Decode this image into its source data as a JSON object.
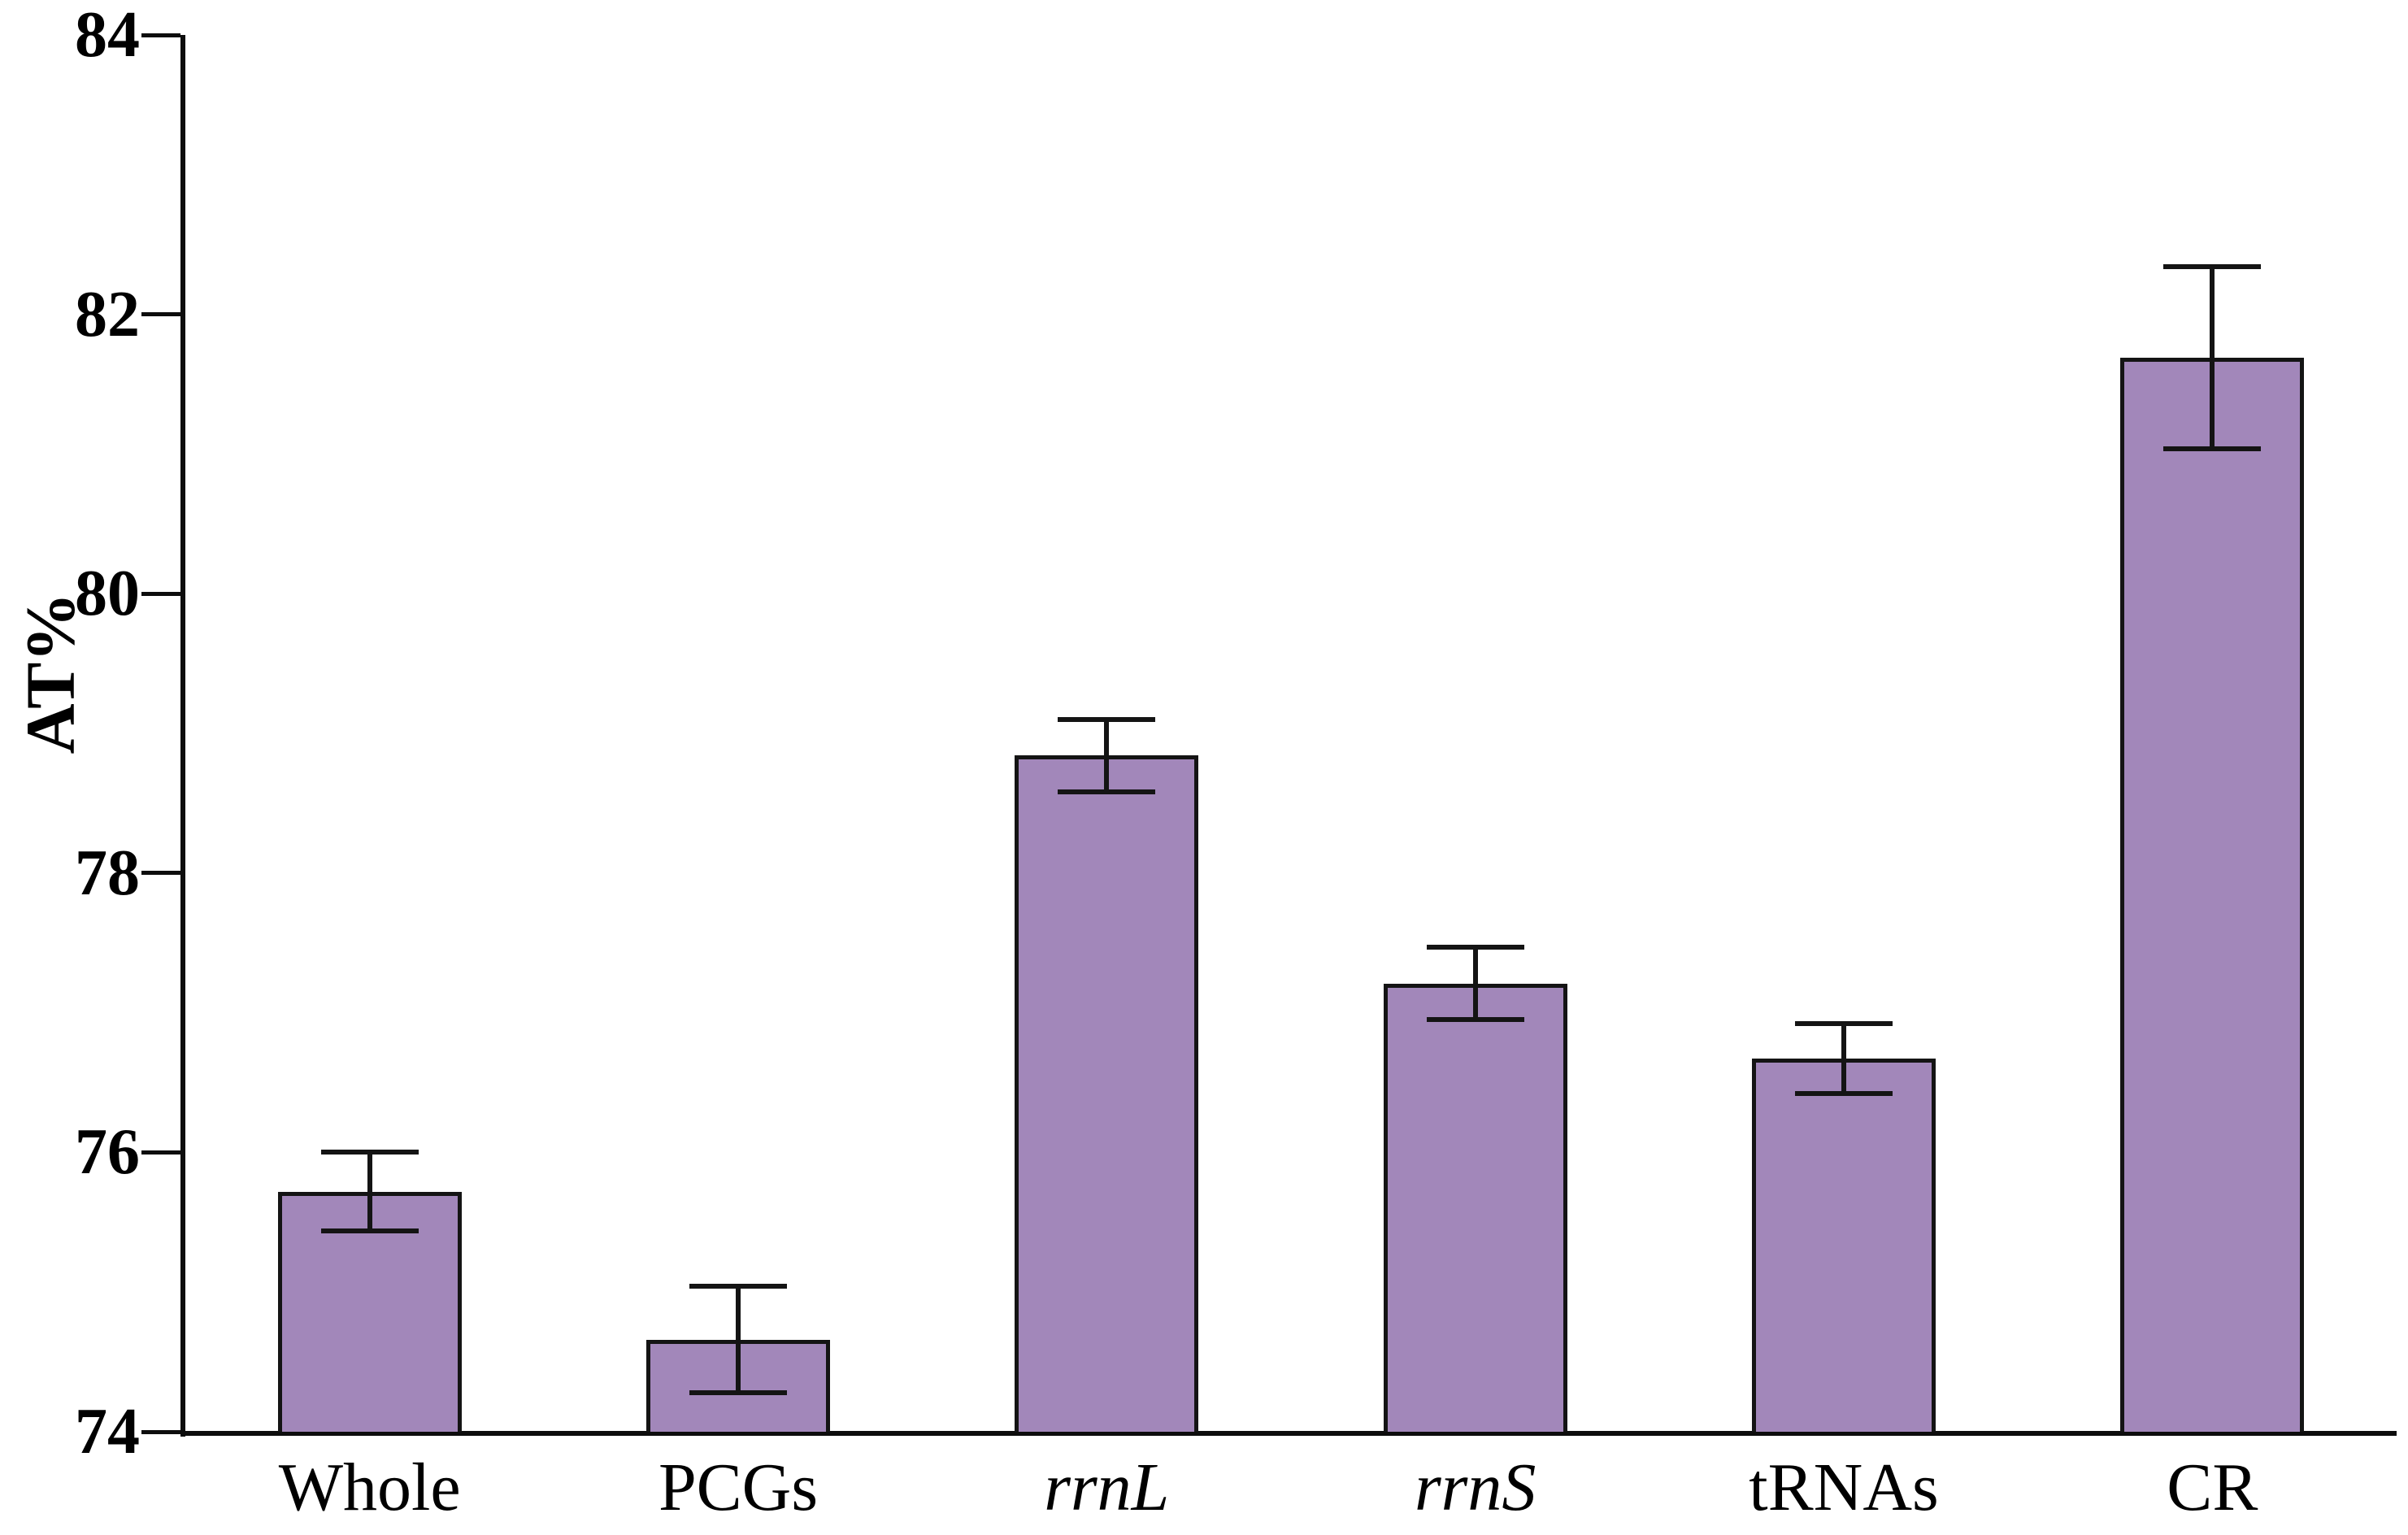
{
  "chart_data": {
    "type": "bar",
    "title": "",
    "xlabel": "",
    "ylabel": "AT%",
    "ylim": [
      74,
      84
    ],
    "yticks": [
      74,
      76,
      78,
      80,
      82,
      84
    ],
    "grid": false,
    "legend": null,
    "bar_color": "#a287ba",
    "bar_edge_color": "#141414",
    "error_bar_color": "#141414",
    "categories": [
      "Whole",
      "PCGs",
      "rrnL",
      "rrnS",
      "tRNAs",
      "CR"
    ],
    "categories_italic": [
      false,
      false,
      true,
      true,
      false,
      false
    ],
    "values": [
      75.72,
      74.66,
      78.84,
      77.21,
      76.67,
      81.69
    ],
    "errors": [
      0.28,
      0.38,
      0.26,
      0.26,
      0.25,
      0.65
    ]
  }
}
